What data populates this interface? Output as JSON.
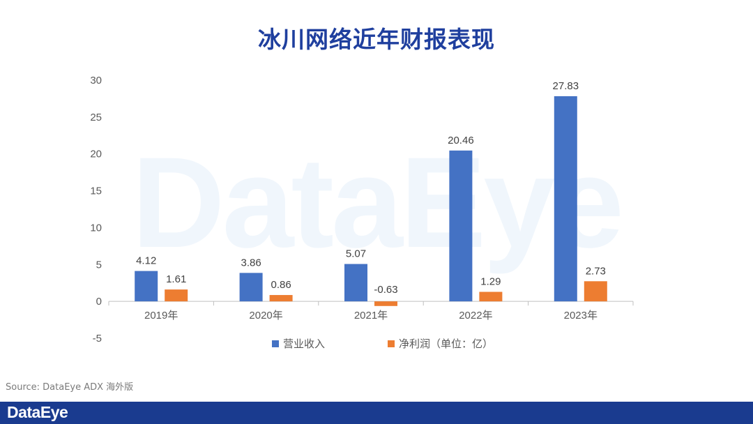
{
  "header": {
    "title": "冰川网络近年财报表现"
  },
  "watermark": {
    "text": "DataEye"
  },
  "chart_data": {
    "type": "bar",
    "categories": [
      "2019年",
      "2020年",
      "2021年",
      "2022年",
      "2023年"
    ],
    "series": [
      {
        "name": "营业收入",
        "color": "#4472c4",
        "values": [
          4.12,
          3.86,
          5.07,
          20.46,
          27.83
        ],
        "labels": [
          "4.12",
          "3.86",
          "5.07",
          "20.46",
          "27.83"
        ]
      },
      {
        "name": "净利润（单位：亿）",
        "color": "#ed7d31",
        "values": [
          1.61,
          0.86,
          -0.63,
          1.29,
          2.73
        ],
        "labels": [
          "1.61",
          "0.86",
          "-0.63",
          "1.29",
          "2.73"
        ]
      }
    ],
    "ylim": [
      -5,
      30
    ],
    "yticks": [
      -5,
      0,
      5,
      10,
      15,
      20,
      25,
      30
    ],
    "legend": "bottom-center",
    "grid": false
  },
  "source": {
    "text": "Source: DataEye ADX 海外版"
  },
  "footer": {
    "logo": "DataEye"
  }
}
